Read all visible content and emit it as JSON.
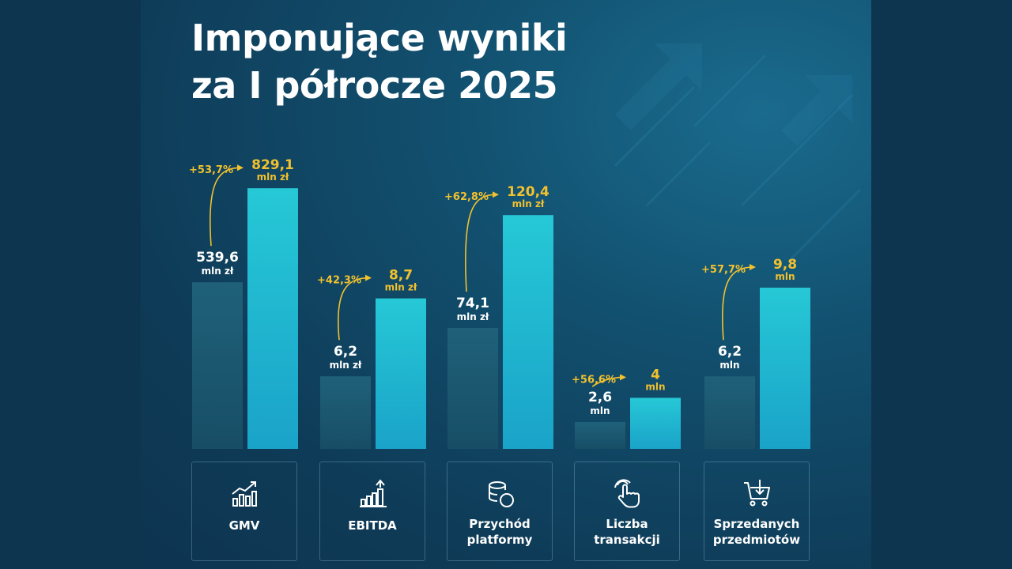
{
  "title": {
    "line1": "Imponujące wyniki",
    "line2": "za I półrocze 2025"
  },
  "colors": {
    "accent": "#f2c12e",
    "bar_prev": "#1c5b72",
    "bar_curr": "#22c1d6",
    "text": "#ffffff"
  },
  "chart_data": {
    "type": "bar",
    "categories": [
      "GMV",
      "EBITDA",
      "Przychód platformy",
      "Liczba transakcji",
      "Sprzedanych przedmiotów"
    ],
    "series": [
      {
        "values": [
          539.6,
          6.2,
          74.1,
          2.6,
          6.2
        ]
      },
      {
        "values": [
          829.1,
          8.7,
          120.4,
          4,
          9.8
        ]
      }
    ],
    "groups": [
      {
        "label": "GMV",
        "icon": "growth-chart-icon",
        "prev": {
          "value": "539,6",
          "unit": "mln zł"
        },
        "curr": {
          "value": "829,1",
          "unit": "mln zł"
        },
        "change": "+53,7%",
        "level_prev": 0.62,
        "level_curr": 0.97
      },
      {
        "label": "EBITDA",
        "icon": "bar-chart-up-icon",
        "prev": {
          "value": "6,2",
          "unit": "mln zł"
        },
        "curr": {
          "value": "8,7",
          "unit": "mln zł"
        },
        "change": "+42,3%",
        "level_prev": 0.27,
        "level_curr": 0.56
      },
      {
        "label": "Przychód platformy",
        "icon": "coins-icon",
        "prev": {
          "value": "74,1",
          "unit": "mln zł"
        },
        "curr": {
          "value": "120,4",
          "unit": "mln zł"
        },
        "change": "+62,8%",
        "level_prev": 0.45,
        "level_curr": 0.87
      },
      {
        "label": "Liczba transakcji",
        "icon": "hand-tap-icon",
        "prev": {
          "value": "2,6",
          "unit": "mln"
        },
        "curr": {
          "value": "4",
          "unit": "mln"
        },
        "change": "+56,6%",
        "level_prev": 0.1,
        "level_curr": 0.19
      },
      {
        "label": "Sprzedanych przedmiotów",
        "icon": "shopping-cart-icon",
        "prev": {
          "value": "6,2",
          "unit": "mln"
        },
        "curr": {
          "value": "9,8",
          "unit": "mln"
        },
        "change": "+57,7%",
        "level_prev": 0.27,
        "level_curr": 0.6
      }
    ]
  }
}
